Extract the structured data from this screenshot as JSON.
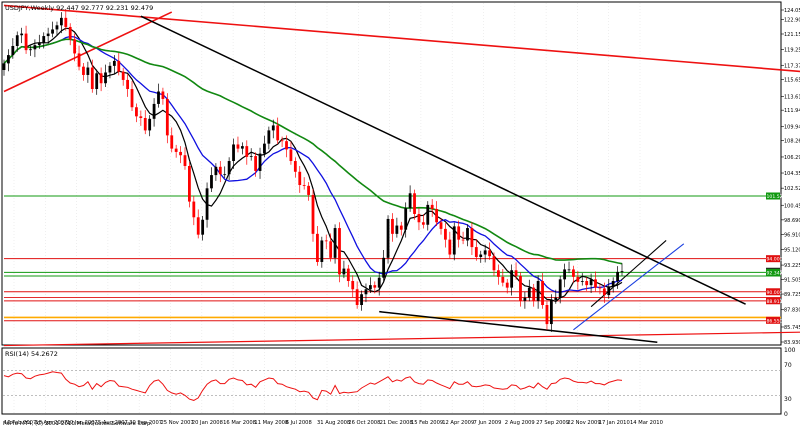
{
  "window": {
    "title": "USDJPY,Weekly  92.447 92.777 92.231 92.479",
    "copyright": "FxPro MT4, (C) 2001-2010 MetaQuotes Software Corp."
  },
  "indicator": {
    "label": "RSI(14) 54.2672",
    "scale": [
      "100",
      "70",
      "30",
      "0"
    ]
  },
  "colors": {
    "background": "#ffffff",
    "grid": "#e4e4e4",
    "bull": "#000000",
    "bear": "#ff0000",
    "ma_fast": "#000000",
    "ma_mid": "#1010e0",
    "ma_slow": "#118811",
    "trend_red": "#ee1111",
    "trend_black": "#000000",
    "trend_blue": "#1a3fe0",
    "hline_red": "#e01010",
    "hline_green": "#119911",
    "hline_orange": "#ffaa00",
    "rsi": "#ee1111"
  },
  "chart_data": {
    "type": "candlestick",
    "symbol": "USDJPY",
    "timeframe": "Weekly",
    "quote": {
      "open": 92.447,
      "high": 92.777,
      "low": 92.231,
      "close": 92.479
    },
    "x_labels": [
      "16 Feb 2007",
      "18 Apr 2007",
      "10 Jun 2007",
      "5 Aug 2007",
      "30 Sep 2007",
      "25 Nov 2007",
      "20 Jan 2008",
      "16 Mar 2008",
      "11 May 2008",
      "6 Jul 2008",
      "31 Aug 2008",
      "26 Oct 2008",
      "21 Dec 2008",
      "15 Feb 2009",
      "12 Apr 2009",
      "7 Jun 2009",
      "2 Aug 2009",
      "27 Sep 2009",
      "22 Nov 2009",
      "17 Jan 2010",
      "14 Mar 2010"
    ],
    "y_labels": [
      "124.050",
      "122.900",
      "121.150",
      "119.255",
      "117.370",
      "115.655",
      "113.615",
      "111.945",
      "109.945",
      "108.260",
      "106.290",
      "104.350",
      "102.520",
      "100.455",
      "98.690",
      "96.910",
      "95.120",
      "93.225",
      "91.505",
      "89.725",
      "87.830",
      "85.745",
      "83.930"
    ],
    "y_range": [
      83.93,
      124.05
    ],
    "level_tags": [
      {
        "value": 94.0,
        "text": "94.000",
        "color": "#e01010"
      },
      {
        "value": 92.479,
        "text": "92.479",
        "color": "#222222"
      },
      {
        "value": 92.347,
        "text": "92.347",
        "color": "#119911"
      },
      {
        "value": 90.0,
        "text": "90.000",
        "color": "#e01010"
      },
      {
        "value": 88.911,
        "text": "88.911",
        "color": "#e01010"
      },
      {
        "value": 86.55,
        "text": "86.550",
        "color": "#e01010"
      },
      {
        "value": 101.573,
        "text": "101.573",
        "color": "#119911"
      }
    ],
    "close_series": [
      117.6,
      118.6,
      119.7,
      121.0,
      121.2,
      119.2,
      119.3,
      119.8,
      120.1,
      120.9,
      121.2,
      121.7,
      122.2,
      123.1,
      122.0,
      120.5,
      118.8,
      117.2,
      116.2,
      117.1,
      114.5,
      116.4,
      115.2,
      116.5,
      117.3,
      117.9,
      116.6,
      115.6,
      114.5,
      112.3,
      111.2,
      111.0,
      109.5,
      110.9,
      112.7,
      114.2,
      113.3,
      108.9,
      107.3,
      106.9,
      106.5,
      105.2,
      100.9,
      99.0,
      96.9,
      98.7,
      102.5,
      104.1,
      105.1,
      104.2,
      104.2,
      105.8,
      107.8,
      107.3,
      107.6,
      106.3,
      106.4,
      104.6,
      106.7,
      107.9,
      109.5,
      110.1,
      108.3,
      108.2,
      107.2,
      105.8,
      104.5,
      102.9,
      102.8,
      101.7,
      97.0,
      93.6,
      96.2,
      96.1,
      94.1,
      97.7,
      92.1,
      92.8,
      91.3,
      90.3,
      88.4,
      89.7,
      90.3,
      90.8,
      90.5,
      91.7,
      94.1,
      98.8,
      97.0,
      98.0,
      97.5,
      100.1,
      101.9,
      99.4,
      98.4,
      98.1,
      100.5,
      100.0,
      98.4,
      97.6,
      96.3,
      94.5,
      97.9,
      96.3,
      96.2,
      97.7,
      95.4,
      94.2,
      94.5,
      95.0,
      94.3,
      92.6,
      91.8,
      91.1,
      90.5,
      92.6,
      91.9,
      88.9,
      89.3,
      90.5,
      88.9,
      91.3,
      88.4,
      86.1,
      89.0,
      89.3,
      91.5,
      92.7,
      92.7,
      91.8,
      91.2,
      91.3,
      90.8,
      91.5,
      90.5,
      90.4,
      89.6,
      90.6,
      91.3,
      92.4,
      92.5
    ],
    "rsi_values": [
      62,
      60,
      64,
      66,
      65,
      58,
      57,
      61,
      63,
      64,
      66,
      68,
      67,
      66,
      56,
      50,
      48,
      44,
      46,
      52,
      40,
      49,
      44,
      51,
      54,
      53,
      45,
      44,
      43,
      40,
      38,
      36,
      34,
      46,
      53,
      55,
      48,
      38,
      34,
      32,
      34,
      30,
      24,
      22,
      26,
      38,
      48,
      53,
      55,
      49,
      49,
      56,
      58,
      55,
      54,
      47,
      48,
      43,
      52,
      55,
      58,
      57,
      49,
      48,
      44,
      42,
      40,
      36,
      37,
      35,
      26,
      23,
      38,
      37,
      32,
      46,
      33,
      35,
      34,
      35,
      36,
      42,
      46,
      50,
      48,
      52,
      56,
      60,
      52,
      55,
      53,
      58,
      60,
      52,
      49,
      48,
      55,
      54,
      50,
      47,
      44,
      41,
      52,
      48,
      48,
      52,
      45,
      44,
      45,
      47,
      46,
      42,
      41,
      40,
      41,
      47,
      46,
      40,
      42,
      45,
      42,
      50,
      44,
      40,
      49,
      50,
      56,
      58,
      57,
      53,
      51,
      51,
      50,
      53,
      49,
      49,
      47,
      51,
      53,
      55,
      54.27
    ]
  }
}
